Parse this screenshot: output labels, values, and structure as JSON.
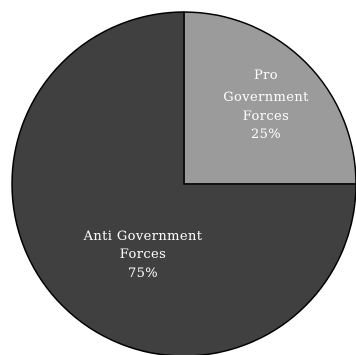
{
  "chart_data": {
    "type": "pie",
    "slices": [
      {
        "label_lines": [
          "Pro",
          "Government",
          "Forces"
        ],
        "value": 25,
        "value_label": "25%",
        "color": "#9b9b9b"
      },
      {
        "label_lines": [
          "Anti Government",
          "Forces"
        ],
        "value": 75,
        "value_label": "75%",
        "color": "#404040"
      }
    ],
    "start_angle_deg": -90,
    "direction": "clockwise",
    "stroke_color": "#000000",
    "legend": "none"
  }
}
